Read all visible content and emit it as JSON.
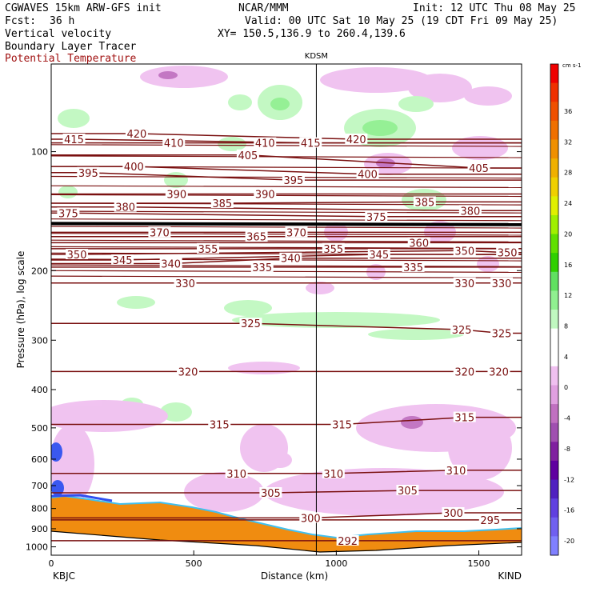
{
  "header": {
    "model_title": "CGWAVES 15km ARW-GFS init",
    "org": "NCAR/MMM",
    "init": "Init: 12 UTC Thu 08 May 25",
    "fcst_label": "Fcst:",
    "fcst_value": "36 h",
    "valid": "Valid: 00 UTC Sat 10 May 25 (19 CDT Fri 09 May 25)",
    "field1": "Vertical velocity",
    "xy": "XY= 150.5,136.9 to 260.4,139.6",
    "field2": "Boundary Layer Tracer",
    "field3": "Potential Temperature"
  },
  "chart_data": {
    "type": "cross-section",
    "station_label": "KDSM",
    "left_station": "KBJC",
    "right_station": "KIND",
    "xlabel": "Distance (km)",
    "ylabel": "Pressure (hPa), log scale",
    "x_ticks": [
      "0",
      "500",
      "1000",
      "1500"
    ],
    "xlim": [
      0,
      1650
    ],
    "station_x_km": 930,
    "y_ticks": [
      "100",
      "200",
      "300",
      "400",
      "500",
      "600",
      "700",
      "800",
      "900",
      "1000"
    ],
    "ylim_hpa": [
      1050,
      60
    ],
    "colorbar": {
      "unit": "cm s-1",
      "ticks": [
        "36",
        "32",
        "28",
        "24",
        "20",
        "16",
        "12",
        "8",
        "4",
        "0",
        "-4",
        "-8",
        "-12",
        "-16",
        "-20"
      ],
      "colors": [
        "#f00000",
        "#f03000",
        "#f05000",
        "#f07000",
        "#f09000",
        "#f0b000",
        "#f0d000",
        "#e0f000",
        "#a0f000",
        "#60e000",
        "#30d000",
        "#60e060",
        "#90f090",
        "#c0f8c0",
        "#ffffff",
        "#ffffff",
        "#f0c0f0",
        "#e0a0e0",
        "#c070c0",
        "#a050b0",
        "#8020a0",
        "#6000a0",
        "#5020c0",
        "#6040e0",
        "#7060f0",
        "#8080ff"
      ]
    },
    "theta_labels": [
      {
        "v": "415",
        "x": 80,
        "p": 93
      },
      {
        "v": "420",
        "x": 300,
        "p": 90
      },
      {
        "v": "410",
        "x": 430,
        "p": 95
      },
      {
        "v": "410",
        "x": 750,
        "p": 95
      },
      {
        "v": "415",
        "x": 910,
        "p": 95
      },
      {
        "v": "420",
        "x": 1070,
        "p": 93
      },
      {
        "v": "405",
        "x": 690,
        "p": 102
      },
      {
        "v": "405",
        "x": 1500,
        "p": 110
      },
      {
        "v": "395",
        "x": 130,
        "p": 113
      },
      {
        "v": "400",
        "x": 290,
        "p": 109
      },
      {
        "v": "395",
        "x": 850,
        "p": 118
      },
      {
        "v": "400",
        "x": 1110,
        "p": 114
      },
      {
        "v": "390",
        "x": 440,
        "p": 128
      },
      {
        "v": "390",
        "x": 750,
        "p": 128
      },
      {
        "v": "385",
        "x": 600,
        "p": 135
      },
      {
        "v": "385",
        "x": 1310,
        "p": 134
      },
      {
        "v": "380",
        "x": 260,
        "p": 138
      },
      {
        "v": "380",
        "x": 1470,
        "p": 141
      },
      {
        "v": "375",
        "x": 60,
        "p": 143
      },
      {
        "v": "375",
        "x": 1140,
        "p": 146
      },
      {
        "v": "370",
        "x": 380,
        "p": 160
      },
      {
        "v": "370",
        "x": 860,
        "p": 160
      },
      {
        "v": "365",
        "x": 720,
        "p": 164
      },
      {
        "v": "360",
        "x": 1290,
        "p": 170
      },
      {
        "v": "355",
        "x": 550,
        "p": 176
      },
      {
        "v": "355",
        "x": 990,
        "p": 176
      },
      {
        "v": "350",
        "x": 90,
        "p": 182
      },
      {
        "v": "350",
        "x": 1450,
        "p": 178
      },
      {
        "v": "350",
        "x": 1600,
        "p": 180
      },
      {
        "v": "345",
        "x": 250,
        "p": 188
      },
      {
        "v": "345",
        "x": 1150,
        "p": 182
      },
      {
        "v": "340",
        "x": 420,
        "p": 192
      },
      {
        "v": "340",
        "x": 840,
        "p": 186
      },
      {
        "v": "335",
        "x": 740,
        "p": 196
      },
      {
        "v": "335",
        "x": 1270,
        "p": 196
      },
      {
        "v": "330",
        "x": 470,
        "p": 215
      },
      {
        "v": "330",
        "x": 1450,
        "p": 215
      },
      {
        "v": "330",
        "x": 1580,
        "p": 215
      },
      {
        "v": "325",
        "x": 700,
        "p": 272
      },
      {
        "v": "325",
        "x": 1440,
        "p": 282
      },
      {
        "v": "325",
        "x": 1580,
        "p": 288
      },
      {
        "v": "320",
        "x": 480,
        "p": 360
      },
      {
        "v": "320",
        "x": 1450,
        "p": 360
      },
      {
        "v": "320",
        "x": 1570,
        "p": 360
      },
      {
        "v": "315",
        "x": 590,
        "p": 490
      },
      {
        "v": "315",
        "x": 1020,
        "p": 490
      },
      {
        "v": "315",
        "x": 1450,
        "p": 470
      },
      {
        "v": "310",
        "x": 650,
        "p": 652
      },
      {
        "v": "310",
        "x": 990,
        "p": 652
      },
      {
        "v": "310",
        "x": 1420,
        "p": 640
      },
      {
        "v": "305",
        "x": 770,
        "p": 730
      },
      {
        "v": "305",
        "x": 1250,
        "p": 720
      },
      {
        "v": "300",
        "x": 910,
        "p": 845
      },
      {
        "v": "300",
        "x": 1410,
        "p": 820
      },
      {
        "v": "295",
        "x": 1540,
        "p": 855
      },
      {
        "v": "292",
        "x": 1040,
        "p": 965
      }
    ]
  }
}
